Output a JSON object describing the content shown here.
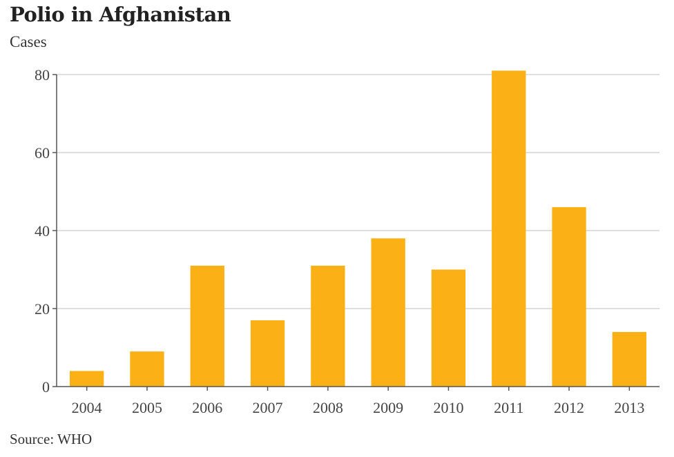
{
  "header": {
    "title": "Polio in Afghanistan",
    "subtitle": "Cases"
  },
  "footer": {
    "source": "Source: WHO"
  },
  "colors": {
    "bar": "#FBB116",
    "grid": "#cccccc",
    "axis": "#555555"
  },
  "chart_data": {
    "type": "bar",
    "title": "Polio in Afghanistan",
    "ylabel": "Cases",
    "xlabel": "",
    "categories": [
      "2004",
      "2005",
      "2006",
      "2007",
      "2008",
      "2009",
      "2010",
      "2011",
      "2012",
      "2013"
    ],
    "values": [
      4,
      9,
      31,
      17,
      31,
      38,
      30,
      81,
      46,
      14
    ],
    "ylim": [
      0,
      80
    ],
    "yticks": [
      0,
      20,
      40,
      60,
      80
    ],
    "grid": true,
    "legend": "none"
  }
}
